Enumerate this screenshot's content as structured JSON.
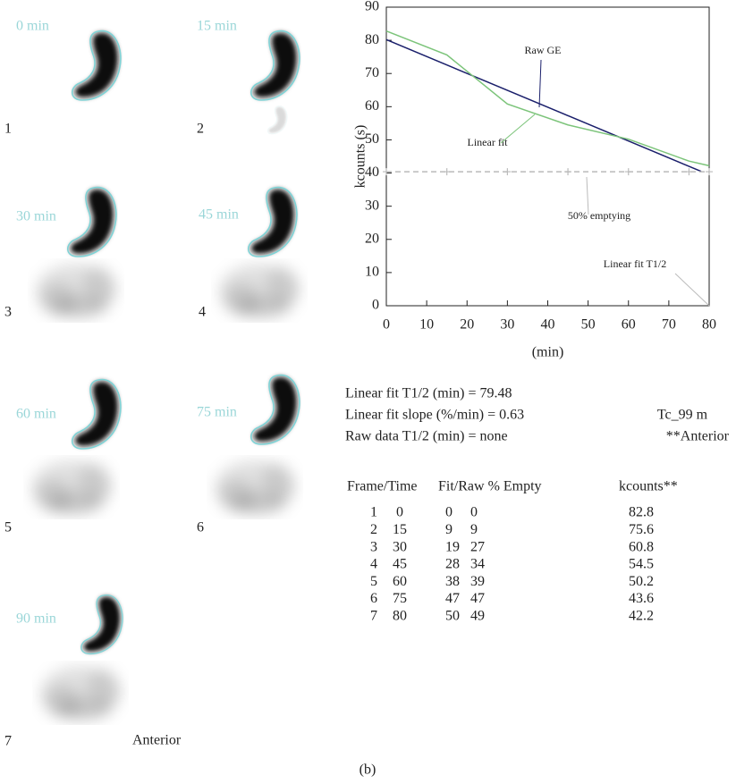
{
  "frames": [
    {
      "time": "0 min",
      "number": "1"
    },
    {
      "time": "15 min",
      "number": "2"
    },
    {
      "time": "30 min",
      "number": "3"
    },
    {
      "time": "45 min",
      "number": "4"
    },
    {
      "time": "60 min",
      "number": "5"
    },
    {
      "time": "75 min",
      "number": "6"
    },
    {
      "time": "90 min",
      "number": "7"
    }
  ],
  "view": "Anterior",
  "chart_data": {
    "type": "line",
    "ylabel": "kcounts (s)",
    "xlabel": "(min)",
    "xlim": [
      0,
      80
    ],
    "xticks": [
      0,
      10,
      20,
      30,
      40,
      50,
      60,
      70,
      80
    ],
    "ylim": [
      0,
      90
    ],
    "yticks": [
      0,
      10,
      20,
      30,
      40,
      50,
      60,
      70,
      80,
      90
    ],
    "series": [
      {
        "name": "Raw GE",
        "color": "#1a1f6b",
        "x": [
          0,
          78
        ],
        "values": [
          80.2,
          40.5
        ]
      },
      {
        "name": "Linear fit",
        "color": "#7cc47a",
        "x": [
          0,
          15,
          30,
          45,
          60,
          75,
          80
        ],
        "values": [
          82.8,
          75.6,
          60.8,
          54.5,
          50.2,
          43.6,
          42.2
        ]
      },
      {
        "name": "50% emptying",
        "color": "#bbbbbb",
        "dashed": true,
        "x": [
          0,
          15,
          30,
          45,
          60,
          75,
          80
        ],
        "values": [
          40.4,
          40.4,
          40.4,
          40.4,
          40.4,
          40.4,
          40.4
        ]
      }
    ],
    "annotations": [
      "Linear fit T1/2"
    ]
  },
  "summary": [
    "Linear fit T1/2 (min) = 79.48",
    "Linear fit slope (%/min) = 0.63",
    "Raw data T1/2 (min) = none"
  ],
  "isotope": "Tc_99 m",
  "view_note": "**Anterior",
  "table": {
    "header": [
      "Frame/Time",
      "Fit/Raw % Empty",
      "kcounts**"
    ],
    "rows": [
      [
        "1",
        "0",
        "0",
        "0",
        "82.8"
      ],
      [
        "2",
        "15",
        "9",
        "9",
        "75.6"
      ],
      [
        "3",
        "30",
        "19",
        "27",
        "60.8"
      ],
      [
        "4",
        "45",
        "28",
        "34",
        "54.5"
      ],
      [
        "5",
        "60",
        "38",
        "39",
        "50.2"
      ],
      [
        "6",
        "75",
        "47",
        "47",
        "43.6"
      ],
      [
        "7",
        "80",
        "50",
        "49",
        "42.2"
      ]
    ]
  },
  "caption": "(b)"
}
